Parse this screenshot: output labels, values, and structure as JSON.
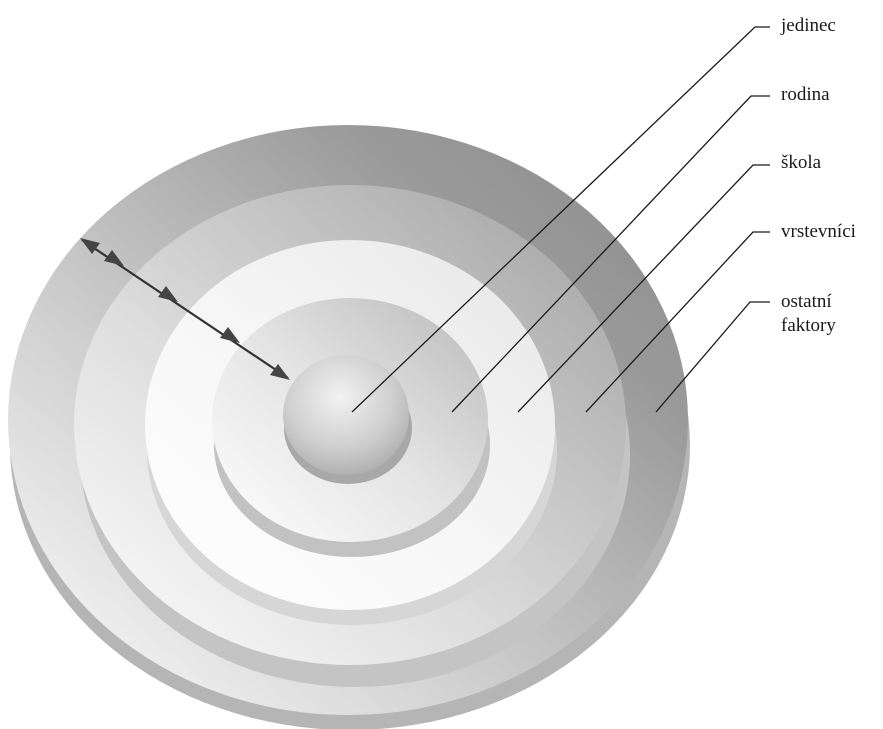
{
  "diagram": {
    "labels": [
      {
        "id": "jedinec",
        "text": "jedinec"
      },
      {
        "id": "rodina",
        "text": "rodina"
      },
      {
        "id": "skola",
        "text": "škola"
      },
      {
        "id": "vrstevnici",
        "text": "vrstevníci"
      },
      {
        "id": "ostatni",
        "lines": [
          "ostatní",
          "faktory"
        ]
      }
    ],
    "colors": {
      "ring_outer": "#8f8f8f",
      "ring_light": "#f7f7f7",
      "center": "#c9c9c9",
      "leader_line": "#1a1a1a",
      "arrow": "#444444"
    },
    "icons": {
      "arrow_marker": "triangle-arrowhead-icon"
    }
  }
}
